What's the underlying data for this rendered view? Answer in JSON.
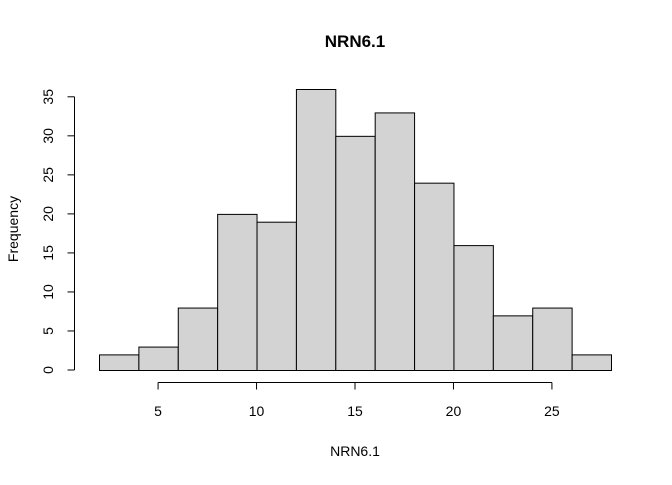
{
  "chart_data": {
    "type": "bar",
    "title": "NRN6.1",
    "xlabel": "NRN6.1",
    "ylabel": "Frequency",
    "bins": [
      {
        "start": 2,
        "end": 4,
        "count": 2
      },
      {
        "start": 4,
        "end": 6,
        "count": 3
      },
      {
        "start": 6,
        "end": 8,
        "count": 8
      },
      {
        "start": 8,
        "end": 10,
        "count": 20
      },
      {
        "start": 10,
        "end": 12,
        "count": 19
      },
      {
        "start": 12,
        "end": 14,
        "count": 36
      },
      {
        "start": 14,
        "end": 16,
        "count": 30
      },
      {
        "start": 16,
        "end": 18,
        "count": 33
      },
      {
        "start": 18,
        "end": 20,
        "count": 24
      },
      {
        "start": 20,
        "end": 22,
        "count": 16
      },
      {
        "start": 22,
        "end": 24,
        "count": 7
      },
      {
        "start": 24,
        "end": 26,
        "count": 8
      },
      {
        "start": 26,
        "end": 28,
        "count": 2
      }
    ],
    "xticks": [
      "5",
      "10",
      "15",
      "20",
      "25"
    ],
    "yticks": [
      "0",
      "5",
      "10",
      "15",
      "20",
      "25",
      "30",
      "35"
    ],
    "xlim": [
      2,
      28
    ],
    "ylim": [
      0,
      36
    ],
    "grid": false,
    "legend": "none"
  }
}
